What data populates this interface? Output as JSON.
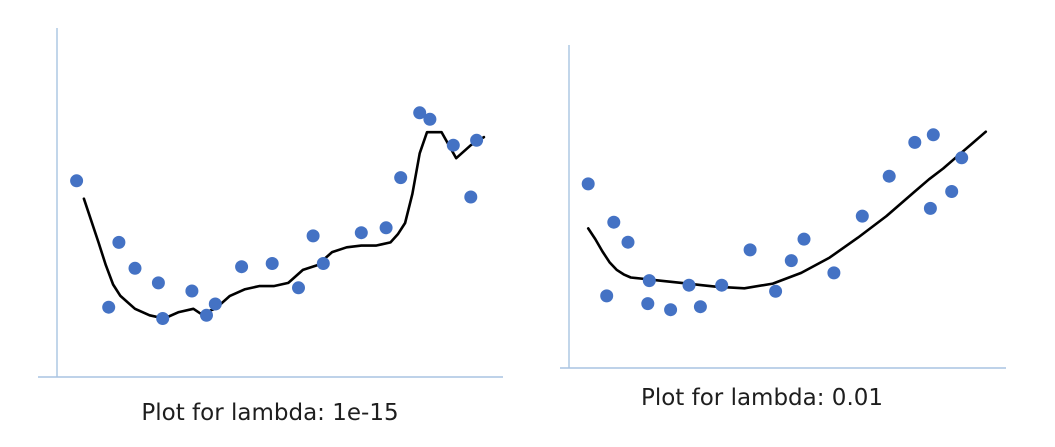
{
  "chart_data": [
    {
      "type": "scatter",
      "title": "Plot for lambda: 1e-15",
      "xlabel": "",
      "ylabel": "",
      "grid": false,
      "legend": "none",
      "colors": {
        "points": "#4472c4",
        "fit": "#000000",
        "axes": "#a9c4e2"
      },
      "xlim": [
        0,
        30
      ],
      "ylim": [
        0,
        20
      ],
      "series": [
        {
          "type": "scatter",
          "x": [
            1.0,
            3.2,
            3.9,
            5.0,
            6.6,
            6.9,
            8.9,
            9.9,
            10.5,
            12.3,
            14.4,
            16.2,
            17.2,
            17.9,
            20.5,
            22.2,
            23.2,
            24.5,
            25.2,
            26.8,
            28.0,
            28.4
          ],
          "y": [
            11.8,
            4.0,
            8.0,
            6.4,
            5.5,
            3.3,
            5.0,
            3.5,
            4.2,
            6.5,
            6.7,
            5.2,
            8.4,
            6.7,
            8.6,
            8.9,
            12.0,
            16.0,
            15.6,
            14.0,
            10.8,
            14.3
          ]
        },
        {
          "type": "line",
          "x": [
            1.5,
            2.5,
            3.0,
            3.5,
            4.0,
            5.0,
            6.0,
            7.0,
            8.0,
            9.0,
            9.5,
            10.5,
            11.5,
            12.5,
            13.5,
            14.5,
            15.5,
            16.5,
            17.5,
            18.5,
            19.5,
            20.5,
            21.5,
            22.5,
            23.0,
            23.5,
            24.0,
            24.5,
            25.0,
            26.0,
            27.0,
            28.0,
            28.9
          ],
          "y": [
            10.7,
            8.0,
            6.6,
            5.4,
            4.7,
            3.9,
            3.5,
            3.3,
            3.7,
            3.9,
            3.6,
            3.9,
            4.7,
            5.1,
            5.3,
            5.3,
            5.5,
            6.3,
            6.6,
            7.4,
            7.7,
            7.8,
            7.8,
            8.0,
            8.5,
            9.2,
            11.0,
            13.5,
            14.8,
            14.8,
            13.2,
            14.0,
            14.5
          ]
        }
      ],
      "caption": "Plot for lambda: 1e-15"
    },
    {
      "type": "scatter",
      "title": "Plot for lambda: 0.01",
      "xlabel": "",
      "ylabel": "",
      "grid": false,
      "legend": "none",
      "colors": {
        "points": "#4472c4",
        "fit": "#000000",
        "axes": "#a9c4e2"
      },
      "xlim": [
        0,
        30
      ],
      "ylim": [
        0,
        20
      ],
      "series": [
        {
          "type": "scatter",
          "x": [
            1.0,
            2.3,
            2.8,
            3.8,
            5.2,
            5.3,
            6.8,
            8.1,
            8.9,
            10.4,
            12.4,
            14.2,
            15.3,
            16.2,
            18.3,
            20.3,
            22.2,
            24.0,
            25.1,
            25.3,
            26.6,
            27.3
          ],
          "y": [
            11.8,
            4.5,
            9.3,
            8.0,
            4.0,
            5.5,
            3.6,
            5.2,
            3.8,
            5.2,
            7.5,
            4.8,
            6.8,
            8.2,
            6.0,
            9.7,
            12.3,
            14.5,
            10.2,
            15.0,
            11.3,
            13.5
          ]
        },
        {
          "type": "line",
          "x": [
            1.0,
            1.5,
            2.0,
            2.5,
            3.0,
            3.5,
            4.0,
            5.0,
            6.0,
            7.0,
            8.0,
            9.0,
            10.0,
            12.0,
            14.0,
            16.0,
            18.0,
            20.0,
            22.0,
            24.0,
            25.0,
            26.0,
            27.0,
            28.0,
            29.0
          ],
          "y": [
            8.9,
            8.2,
            7.4,
            6.7,
            6.2,
            5.9,
            5.7,
            5.6,
            5.5,
            5.4,
            5.3,
            5.2,
            5.1,
            5.0,
            5.3,
            6.0,
            7.0,
            8.3,
            9.7,
            11.3,
            12.1,
            12.8,
            13.6,
            14.4,
            15.2
          ]
        }
      ],
      "caption": "Plot for lambda: 0.01"
    }
  ]
}
